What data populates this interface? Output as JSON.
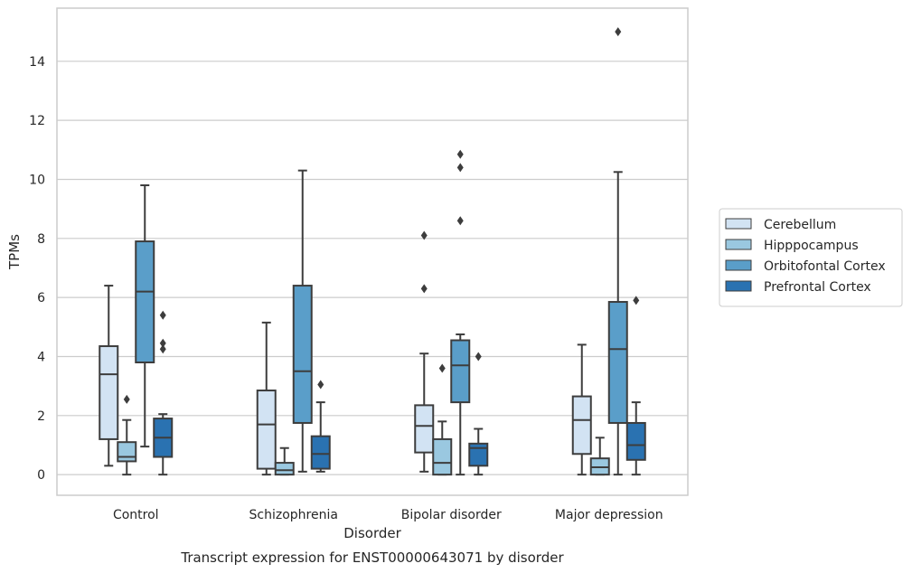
{
  "chart_data": {
    "type": "boxplot",
    "title": "",
    "caption": "Transcript expression for ENST00000643071 by disorder",
    "xlabel": "Disorder",
    "ylabel": "TPMs",
    "ylim": [
      -0.7,
      15.8
    ],
    "yticks": [
      0,
      2,
      4,
      6,
      8,
      10,
      12,
      14
    ],
    "grid": "y",
    "legend_position": "right",
    "categories": [
      "Control",
      "Schizophrenia",
      "Bipolar disorder",
      "Major depression"
    ],
    "series": [
      {
        "name": "Cerebellum",
        "color": "#d2e3f3",
        "boxes": [
          {
            "whisker_low": 0.3,
            "q1": 1.2,
            "median": 3.4,
            "q3": 4.35,
            "whisker_high": 6.4,
            "outliers": []
          },
          {
            "whisker_low": 0.0,
            "q1": 0.2,
            "median": 1.7,
            "q3": 2.85,
            "whisker_high": 5.15,
            "outliers": []
          },
          {
            "whisker_low": 0.1,
            "q1": 0.75,
            "median": 1.65,
            "q3": 2.35,
            "whisker_high": 4.1,
            "outliers": [
              6.3,
              8.1
            ]
          },
          {
            "whisker_low": 0.0,
            "q1": 0.7,
            "median": 1.85,
            "q3": 2.65,
            "whisker_high": 4.4,
            "outliers": []
          }
        ]
      },
      {
        "name": "Hipppocampus",
        "color": "#9ac8e0",
        "boxes": [
          {
            "whisker_low": 0.0,
            "q1": 0.45,
            "median": 0.6,
            "q3": 1.1,
            "whisker_high": 1.85,
            "outliers": [
              2.55
            ]
          },
          {
            "whisker_low": 0.0,
            "q1": 0.0,
            "median": 0.15,
            "q3": 0.4,
            "whisker_high": 0.9,
            "outliers": []
          },
          {
            "whisker_low": 0.0,
            "q1": 0.0,
            "median": 0.4,
            "q3": 1.2,
            "whisker_high": 1.8,
            "outliers": [
              3.6
            ]
          },
          {
            "whisker_low": 0.0,
            "q1": 0.0,
            "median": 0.25,
            "q3": 0.55,
            "whisker_high": 1.25,
            "outliers": []
          }
        ]
      },
      {
        "name": "Orbitofontal Cortex",
        "color": "#5a9ec9",
        "boxes": [
          {
            "whisker_low": 0.95,
            "q1": 3.8,
            "median": 6.2,
            "q3": 7.9,
            "whisker_high": 9.8,
            "outliers": []
          },
          {
            "whisker_low": 0.1,
            "q1": 1.75,
            "median": 3.5,
            "q3": 6.4,
            "whisker_high": 10.3,
            "outliers": []
          },
          {
            "whisker_low": 0.0,
            "q1": 2.45,
            "median": 3.7,
            "q3": 4.55,
            "whisker_high": 4.75,
            "outliers": [
              8.6,
              10.4,
              10.85
            ]
          },
          {
            "whisker_low": 0.0,
            "q1": 1.75,
            "median": 4.25,
            "q3": 5.85,
            "whisker_high": 10.25,
            "outliers": [
              15.0
            ]
          }
        ]
      },
      {
        "name": "Prefrontal Cortex",
        "color": "#2a72b1",
        "boxes": [
          {
            "whisker_low": 0.0,
            "q1": 0.6,
            "median": 1.25,
            "q3": 1.9,
            "whisker_high": 2.05,
            "outliers": [
              4.25,
              4.45,
              5.4
            ]
          },
          {
            "whisker_low": 0.1,
            "q1": 0.2,
            "median": 0.7,
            "q3": 1.3,
            "whisker_high": 2.45,
            "outliers": [
              3.05
            ]
          },
          {
            "whisker_low": 0.0,
            "q1": 0.3,
            "median": 0.9,
            "q3": 1.05,
            "whisker_high": 1.55,
            "outliers": [
              4.0
            ]
          },
          {
            "whisker_low": 0.0,
            "q1": 0.5,
            "median": 1.0,
            "q3": 1.75,
            "whisker_high": 2.45,
            "outliers": [
              5.9
            ]
          }
        ]
      }
    ]
  }
}
